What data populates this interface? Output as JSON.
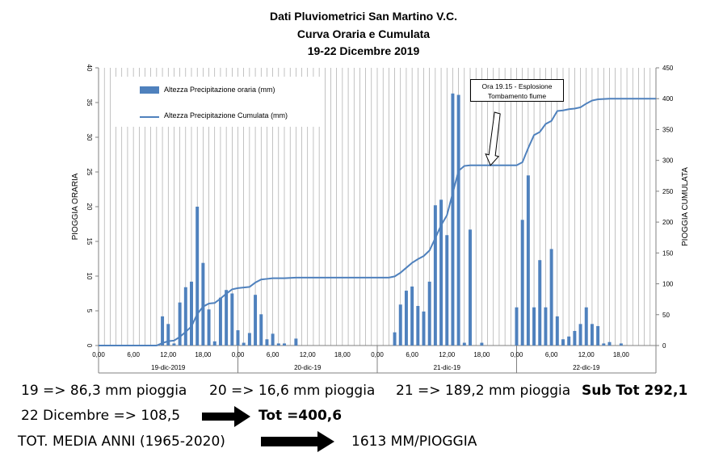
{
  "chart_data": {
    "type": "bar",
    "title_lines": [
      "Dati Pluviometrici San Martino V.C.",
      "Curva Oraria e Cumulata",
      "19-22 Dicembre 2019"
    ],
    "ylabel_left": "PIOGGIA  ORARIA",
    "ylabel_right": "PIOGGIA  CUMULATA",
    "ylim_left": [
      0,
      40
    ],
    "ylim_right": [
      0,
      450
    ],
    "left_ticks": [
      "0",
      "5",
      "10",
      "15",
      "20",
      "25",
      "30",
      "35",
      "40"
    ],
    "right_ticks": [
      "0",
      "50",
      "100",
      "150",
      "200",
      "250",
      "300",
      "350",
      "400",
      "450"
    ],
    "x_tick_labels": [
      "0,00",
      "6,00",
      "12,00",
      "18,00",
      "0,00",
      "6,00",
      "12,00",
      "18,00",
      "0,00",
      "6,00",
      "12,00",
      "18,00",
      "0,00",
      "6,00",
      "12,00",
      "18,00"
    ],
    "x_tick_hours": [
      0,
      6,
      12,
      18,
      24,
      30,
      36,
      42,
      48,
      54,
      60,
      66,
      72,
      78,
      84,
      90
    ],
    "day_labels": [
      "19-dic-2019",
      "20-dic-19",
      "21-dic-19",
      "22-dic-19"
    ],
    "day_label_hours": [
      12,
      36,
      60,
      84
    ],
    "x_range_hours": [
      0,
      96
    ],
    "legend": [
      "Altezza Precipitazione oraria (mm)",
      "Altezza Precipitazione Cumulata (mm)"
    ],
    "annotation": [
      "Ora 19.15 - Esplosione",
      "Tombamento fiume"
    ],
    "annotation_hour": 67.5,
    "hourly_series": {
      "name": "Altezza Precipitazione oraria (mm)",
      "hours": [
        11,
        12,
        13,
        14,
        15,
        16,
        17,
        18,
        19,
        20,
        21,
        22,
        23,
        24,
        25,
        26,
        27,
        28,
        29,
        30,
        31,
        32,
        34,
        51,
        52,
        53,
        54,
        55,
        56,
        57,
        58,
        59,
        60,
        61,
        62,
        63,
        64,
        66,
        72,
        73,
        74,
        75,
        76,
        77,
        78,
        79,
        80,
        81,
        82,
        83,
        84,
        85,
        86,
        87,
        88,
        90
      ],
      "values": [
        4.2,
        3.1,
        0.3,
        6.2,
        8.4,
        9.2,
        20.0,
        11.9,
        5.2,
        0.6,
        6.9,
        8.0,
        7.5,
        2.2,
        0.4,
        1.8,
        7.3,
        4.5,
        0.9,
        1.7,
        0.3,
        0.3,
        1.0,
        1.9,
        5.9,
        7.9,
        8.5,
        5.7,
        4.9,
        9.2,
        20.2,
        21.0,
        15.9,
        36.3,
        36.1,
        0.4,
        16.7,
        0.4,
        5.5,
        18.1,
        24.5,
        5.5,
        12.3,
        5.5,
        13.9,
        4.2,
        0.9,
        1.3,
        2.1,
        3.1,
        5.5,
        3.1,
        2.8,
        0.3,
        0.5,
        0.3
      ]
    },
    "cumulative_series": {
      "name": "Altezza Precipitazione Cumulata (mm)",
      "hours": [
        0,
        10,
        11,
        12,
        13,
        14,
        15,
        16,
        17,
        18,
        19,
        20,
        21,
        22,
        23,
        24,
        25,
        26,
        27,
        28,
        29,
        30,
        32,
        34,
        50,
        51,
        52,
        53,
        54,
        55,
        56,
        57,
        58,
        59,
        60,
        61,
        62,
        63,
        64,
        65,
        66,
        67,
        68,
        69,
        70,
        71,
        72,
        73,
        74,
        75,
        76,
        77,
        78,
        79,
        80,
        81,
        82,
        83,
        84,
        85,
        86,
        88,
        90,
        96
      ],
      "values": [
        0,
        0,
        4,
        7,
        8,
        14,
        22,
        31,
        51,
        63,
        68,
        69,
        76,
        84,
        91,
        93,
        94,
        95,
        102,
        107,
        108,
        109,
        109,
        110,
        110,
        112,
        118,
        126,
        134,
        140,
        145,
        154,
        174,
        195,
        211,
        247,
        283,
        291,
        292,
        292,
        292,
        292,
        292,
        292,
        292,
        292,
        292,
        297,
        320,
        341,
        346,
        359,
        364,
        380,
        381,
        383,
        384,
        386,
        392,
        397,
        399,
        400,
        400,
        400
      ]
    },
    "colors": {
      "bars": "#4f81bd",
      "line": "#4f81bd",
      "axis": "#808080"
    }
  },
  "summary": {
    "line1_a": "19 => 86,3 mm pioggia",
    "line1_b": "20 => 16,6 mm pioggia",
    "line1_c": "21 => 189,2 mm pioggia",
    "line1_d": "Sub Tot 292,1",
    "line2_a": "22 Dicembre => 108,5",
    "line2_b": "Tot =400,6",
    "line3_a": "TOT. MEDIA ANNI (1965-2020)",
    "line3_b": "1613 MM/PIOGGIA"
  }
}
